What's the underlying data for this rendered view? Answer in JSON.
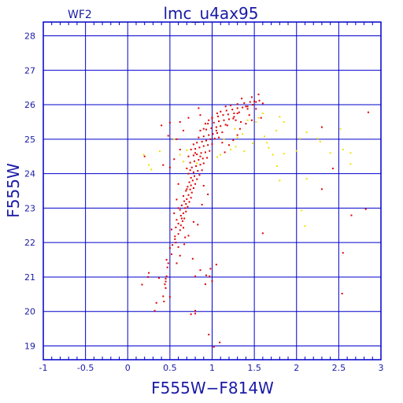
{
  "colors": {
    "axis": "#0000cc",
    "text": "#1a1aa6",
    "primary_points": "#e00000",
    "secondary_points": "#f0e000"
  },
  "chart_data": {
    "type": "scatter",
    "title": "lmc_u4ax95",
    "chip_label": "WF2",
    "xlabel": "F555W−F814W",
    "ylabel": "F555W",
    "xlim": [
      -1,
      3
    ],
    "ylim": [
      28.4,
      18.6
    ],
    "y_inverted": true,
    "grid": true,
    "x_ticks": [
      -1,
      -0.5,
      0,
      0.5,
      1,
      1.5,
      2,
      2.5,
      3
    ],
    "x_tick_labels": [
      "-1",
      "-0.5",
      "0",
      "0.5",
      "1",
      "1.5",
      "2",
      "2.5",
      "3"
    ],
    "y_ticks": [
      19,
      20,
      21,
      22,
      23,
      24,
      25,
      26,
      27,
      28
    ],
    "y_tick_labels": [
      "19",
      "20",
      "21",
      "22",
      "23",
      "24",
      "25",
      "26",
      "27",
      "28"
    ],
    "series": [
      {
        "color": "#e00000",
        "points": [
          [
            1.02,
            18.97
          ],
          [
            1.09,
            19.1
          ],
          [
            0.96,
            19.33
          ],
          [
            0.75,
            19.92
          ],
          [
            0.8,
            19.94
          ],
          [
            0.8,
            20.02
          ],
          [
            0.32,
            20.02
          ],
          [
            0.34,
            20.25
          ],
          [
            0.42,
            20.44
          ],
          [
            0.43,
            20.29
          ],
          [
            0.5,
            20.42
          ],
          [
            0.17,
            20.78
          ],
          [
            0.45,
            20.68
          ],
          [
            0.24,
            21.0
          ],
          [
            0.25,
            21.12
          ],
          [
            0.37,
            20.97
          ],
          [
            0.45,
            20.95
          ],
          [
            0.44,
            20.79
          ],
          [
            0.45,
            20.87
          ],
          [
            0.46,
            21.02
          ],
          [
            0.47,
            21.28
          ],
          [
            0.92,
            20.79
          ],
          [
            0.93,
            21.05
          ],
          [
            0.97,
            21.02
          ],
          [
            1.0,
            20.88
          ],
          [
            0.8,
            21.02
          ],
          [
            0.98,
            21.24
          ],
          [
            0.46,
            21.5
          ],
          [
            0.48,
            21.4
          ],
          [
            0.52,
            21.66
          ],
          [
            0.5,
            21.84
          ],
          [
            0.53,
            21.93
          ],
          [
            0.56,
            22.1
          ],
          [
            0.57,
            22.0
          ],
          [
            0.6,
            21.87
          ],
          [
            0.56,
            22.18
          ],
          [
            0.6,
            22.25
          ],
          [
            0.62,
            22.36
          ],
          [
            0.57,
            22.44
          ],
          [
            0.63,
            22.5
          ],
          [
            0.66,
            22.43
          ],
          [
            0.6,
            22.55
          ],
          [
            0.65,
            22.62
          ],
          [
            0.58,
            22.66
          ],
          [
            0.67,
            22.7
          ],
          [
            0.63,
            22.78
          ],
          [
            0.66,
            22.85
          ],
          [
            0.69,
            22.9
          ],
          [
            0.62,
            22.95
          ],
          [
            0.68,
            23.0
          ],
          [
            0.71,
            23.04
          ],
          [
            0.64,
            23.08
          ],
          [
            0.69,
            23.12
          ],
          [
            0.73,
            23.18
          ],
          [
            0.67,
            23.2
          ],
          [
            0.7,
            23.26
          ],
          [
            0.75,
            23.3
          ],
          [
            0.66,
            23.35
          ],
          [
            0.72,
            23.38
          ],
          [
            0.76,
            23.45
          ],
          [
            0.69,
            23.5
          ],
          [
            0.74,
            23.54
          ],
          [
            0.78,
            23.58
          ],
          [
            0.71,
            23.62
          ],
          [
            0.75,
            23.66
          ],
          [
            0.8,
            23.7
          ],
          [
            0.73,
            23.75
          ],
          [
            0.77,
            23.8
          ],
          [
            0.82,
            23.84
          ],
          [
            0.75,
            23.88
          ],
          [
            0.79,
            23.93
          ],
          [
            0.85,
            23.96
          ],
          [
            0.72,
            24.0
          ],
          [
            0.78,
            24.04
          ],
          [
            0.83,
            24.08
          ],
          [
            0.88,
            24.1
          ],
          [
            0.7,
            24.15
          ],
          [
            0.76,
            24.18
          ],
          [
            0.81,
            24.22
          ],
          [
            0.86,
            24.26
          ],
          [
            0.9,
            24.3
          ],
          [
            0.74,
            24.32
          ],
          [
            0.79,
            24.36
          ],
          [
            0.84,
            24.4
          ],
          [
            0.89,
            24.44
          ],
          [
            0.94,
            24.46
          ],
          [
            0.72,
            24.5
          ],
          [
            0.78,
            24.53
          ],
          [
            0.82,
            24.56
          ],
          [
            0.87,
            24.6
          ],
          [
            0.92,
            24.62
          ],
          [
            0.97,
            24.66
          ],
          [
            0.75,
            24.7
          ],
          [
            0.8,
            24.72
          ],
          [
            0.85,
            24.76
          ],
          [
            0.9,
            24.8
          ],
          [
            0.95,
            24.83
          ],
          [
            1.0,
            24.86
          ],
          [
            0.82,
            24.9
          ],
          [
            0.88,
            24.93
          ],
          [
            0.93,
            24.96
          ],
          [
            0.98,
            25.0
          ],
          [
            1.03,
            25.02
          ],
          [
            1.08,
            25.05
          ],
          [
            0.9,
            25.08
          ],
          [
            0.96,
            25.12
          ],
          [
            1.01,
            25.15
          ],
          [
            1.06,
            25.18
          ],
          [
            1.12,
            25.2
          ],
          [
            0.86,
            25.25
          ],
          [
            0.93,
            25.28
          ],
          [
            0.99,
            25.32
          ],
          [
            1.05,
            25.35
          ],
          [
            1.1,
            25.38
          ],
          [
            1.16,
            25.42
          ],
          [
            0.95,
            25.45
          ],
          [
            1.02,
            25.48
          ],
          [
            1.08,
            25.52
          ],
          [
            1.14,
            25.55
          ],
          [
            1.2,
            25.58
          ],
          [
            1.25,
            25.6
          ],
          [
            1.0,
            25.63
          ],
          [
            1.07,
            25.66
          ],
          [
            1.13,
            25.7
          ],
          [
            1.19,
            25.72
          ],
          [
            1.26,
            25.75
          ],
          [
            1.32,
            25.78
          ],
          [
            1.1,
            25.8
          ],
          [
            1.17,
            25.83
          ],
          [
            1.24,
            25.86
          ],
          [
            1.3,
            25.9
          ],
          [
            1.36,
            25.92
          ],
          [
            1.42,
            25.95
          ],
          [
            1.22,
            25.98
          ],
          [
            1.3,
            26.02
          ],
          [
            1.38,
            26.05
          ],
          [
            1.45,
            26.08
          ],
          [
            1.5,
            26.1
          ],
          [
            1.56,
            26.12
          ],
          [
            1.35,
            26.18
          ],
          [
            1.47,
            26.22
          ],
          [
            1.55,
            26.3
          ],
          [
            1.6,
            26.04
          ],
          [
            1.52,
            25.88
          ],
          [
            1.44,
            25.7
          ],
          [
            1.58,
            25.62
          ],
          [
            0.84,
            25.9
          ],
          [
            0.72,
            25.62
          ],
          [
            0.62,
            25.5
          ],
          [
            0.5,
            25.48
          ],
          [
            0.4,
            25.4
          ],
          [
            0.48,
            25.1
          ],
          [
            0.58,
            25.0
          ],
          [
            0.66,
            25.25
          ],
          [
            0.62,
            24.7
          ],
          [
            0.55,
            24.42
          ],
          [
            0.5,
            24.18
          ],
          [
            0.9,
            23.65
          ],
          [
            0.95,
            23.4
          ],
          [
            0.88,
            23.1
          ],
          [
            0.6,
            23.7
          ],
          [
            0.58,
            23.25
          ],
          [
            0.55,
            22.85
          ],
          [
            0.52,
            22.38
          ],
          [
            0.83,
            22.52
          ],
          [
            0.78,
            22.6
          ],
          [
            0.67,
            21.95
          ],
          [
            0.62,
            21.62
          ],
          [
            0.58,
            21.4
          ],
          [
            0.77,
            21.53
          ],
          [
            0.86,
            21.2
          ],
          [
            1.05,
            21.36
          ],
          [
            1.15,
            24.62
          ],
          [
            1.2,
            24.83
          ],
          [
            1.25,
            24.97
          ],
          [
            1.3,
            25.12
          ],
          [
            1.33,
            25.3
          ],
          [
            1.4,
            25.45
          ],
          [
            1.47,
            25.55
          ],
          [
            1.12,
            24.9
          ],
          [
            1.05,
            25.25
          ],
          [
            1.18,
            25.4
          ],
          [
            1.28,
            25.55
          ],
          [
            1.0,
            25.6
          ],
          [
            0.92,
            25.45
          ],
          [
            0.86,
            25.7
          ],
          [
            1.6,
            22.27
          ],
          [
            2.54,
            20.52
          ],
          [
            2.55,
            21.7
          ],
          [
            2.65,
            22.79
          ],
          [
            2.82,
            22.97
          ],
          [
            2.3,
            23.55
          ],
          [
            2.43,
            24.15
          ],
          [
            2.3,
            25.35
          ],
          [
            2.85,
            25.78
          ],
          [
            0.42,
            24.25
          ],
          [
            0.2,
            24.5
          ],
          [
            0.6,
            23.0
          ],
          [
            0.72,
            22.2
          ],
          [
            0.68,
            22.15
          ],
          [
            0.64,
            22.7
          ],
          [
            0.7,
            23.55
          ],
          [
            0.74,
            24.1
          ],
          [
            0.8,
            24.6
          ],
          [
            0.86,
            24.5
          ],
          [
            0.78,
            24.85
          ],
          [
            0.84,
            25.05
          ],
          [
            0.9,
            25.3
          ],
          [
            0.96,
            25.55
          ],
          [
            1.06,
            25.75
          ],
          [
            1.16,
            25.95
          ],
          [
            1.26,
            25.65
          ],
          [
            1.34,
            25.5
          ],
          [
            1.42,
            25.88
          ],
          [
            1.48,
            26.0
          ],
          [
            1.52,
            26.08
          ],
          [
            1.4,
            25.95
          ],
          [
            1.3,
            25.75
          ]
        ]
      },
      {
        "color": "#f0e000",
        "points": [
          [
            0.28,
            24.12
          ],
          [
            0.25,
            24.25
          ],
          [
            0.19,
            24.55
          ],
          [
            0.38,
            24.65
          ],
          [
            0.66,
            24.35
          ],
          [
            0.62,
            24.55
          ],
          [
            0.7,
            24.68
          ],
          [
            1.06,
            24.48
          ],
          [
            1.1,
            24.55
          ],
          [
            1.22,
            24.7
          ],
          [
            1.28,
            24.78
          ],
          [
            1.14,
            25.0
          ],
          [
            1.3,
            25.05
          ],
          [
            1.36,
            25.15
          ],
          [
            1.27,
            25.3
          ],
          [
            1.42,
            25.55
          ],
          [
            1.55,
            25.62
          ],
          [
            1.6,
            25.75
          ],
          [
            1.52,
            25.5
          ],
          [
            1.67,
            24.75
          ],
          [
            1.72,
            24.55
          ],
          [
            1.85,
            24.58
          ],
          [
            1.65,
            24.9
          ],
          [
            1.62,
            25.08
          ],
          [
            1.76,
            25.25
          ],
          [
            1.85,
            25.5
          ],
          [
            1.48,
            24.88
          ],
          [
            1.38,
            24.65
          ],
          [
            2.1,
            22.48
          ],
          [
            2.06,
            22.93
          ],
          [
            2.12,
            23.85
          ],
          [
            2.0,
            24.66
          ],
          [
            2.04,
            25.02
          ],
          [
            2.12,
            25.2
          ],
          [
            2.25,
            25.02
          ],
          [
            2.28,
            24.93
          ],
          [
            2.4,
            24.6
          ],
          [
            2.52,
            25.3
          ],
          [
            2.64,
            24.28
          ],
          [
            2.64,
            24.6
          ],
          [
            2.55,
            24.7
          ],
          [
            1.8,
            23.8
          ],
          [
            1.77,
            24.22
          ],
          [
            1.8,
            25.65
          ],
          [
            0.55,
            25.0
          ],
          [
            0.82,
            24.3
          ]
        ]
      }
    ]
  }
}
